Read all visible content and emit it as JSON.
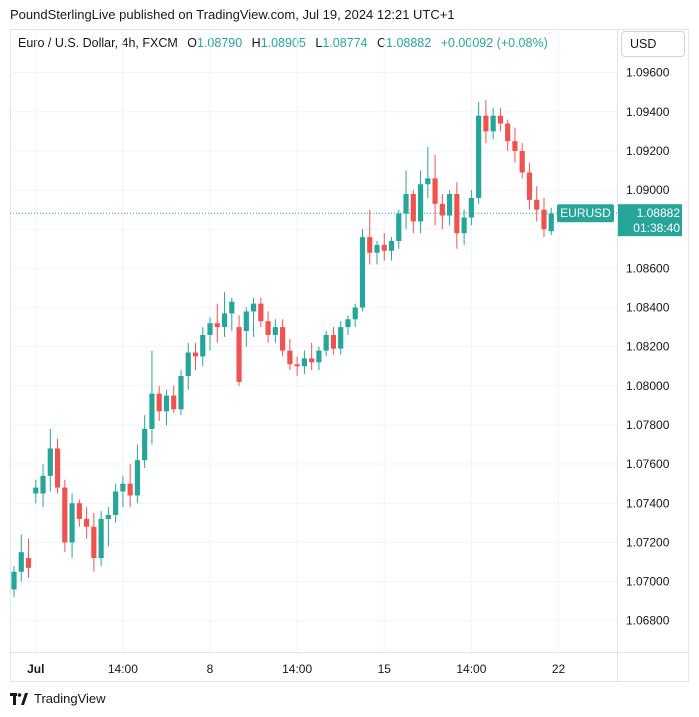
{
  "header": {
    "published_line": "PoundSterlingLive published on TradingView.com, Jul 19, 2024 12:21 UTC+1"
  },
  "legend": {
    "symbol": "Euro / U.S. Dollar, 4h, FXCM",
    "open_label": "O",
    "open_value": "1.08790",
    "high_label": "H",
    "high_value": "1.08905",
    "low_label": "L",
    "low_value": "1.08774",
    "close_label": "C",
    "close_value": "1.08882",
    "change": "+0.00092 (+0.08%)"
  },
  "currency_button": "USD",
  "price_tag": {
    "symbol": "EURUSD",
    "price": "1.08882",
    "countdown": "01:38:40"
  },
  "footer": {
    "brand": "TradingView"
  },
  "colors": {
    "up": "#26a69a",
    "down": "#ef5350",
    "grid": "#f0f3fa",
    "axis_text": "#131722"
  },
  "chart_data": {
    "type": "candlestick",
    "ylim": [
      1.0664,
      1.0968
    ],
    "yticks": [
      "1.09600",
      "1.09400",
      "1.09200",
      "1.09000",
      "1.08800",
      "1.08600",
      "1.08400",
      "1.08200",
      "1.08000",
      "1.07800",
      "1.07600",
      "1.07400",
      "1.07200",
      "1.07000",
      "1.06800"
    ],
    "xticks": [
      {
        "label": "Jul",
        "index": 3
      },
      {
        "label": "14:00",
        "index": 15
      },
      {
        "label": "8",
        "index": 27
      },
      {
        "label": "14:00",
        "index": 39
      },
      {
        "label": "15",
        "index": 51
      },
      {
        "label": "14:00",
        "index": 63
      },
      {
        "label": "22",
        "index": 75
      }
    ],
    "last_price": 1.08882,
    "candles": [
      [
        1.0696,
        1.0708,
        1.0692,
        1.0705
      ],
      [
        1.0705,
        1.0724,
        1.07,
        1.0715
      ],
      [
        1.0712,
        1.0722,
        1.0702,
        1.0707
      ],
      [
        1.0745,
        1.0752,
        1.074,
        1.0748
      ],
      [
        1.0745,
        1.076,
        1.0738,
        1.0754
      ],
      [
        1.0754,
        1.0778,
        1.0746,
        1.0768
      ],
      [
        1.0768,
        1.0773,
        1.0745,
        1.0748
      ],
      [
        1.0748,
        1.0752,
        1.0715,
        1.072
      ],
      [
        1.072,
        1.0745,
        1.0712,
        1.074
      ],
      [
        1.074,
        1.0742,
        1.0728,
        1.0732
      ],
      [
        1.0732,
        1.0738,
        1.0722,
        1.0728
      ],
      [
        1.0728,
        1.0735,
        1.0705,
        1.0712
      ],
      [
        1.0712,
        1.0736,
        1.0708,
        1.0732
      ],
      [
        1.0732,
        1.0738,
        1.0718,
        1.0734
      ],
      [
        1.0734,
        1.075,
        1.073,
        1.0746
      ],
      [
        1.0746,
        1.0754,
        1.0738,
        1.075
      ],
      [
        1.075,
        1.076,
        1.0738,
        1.0744
      ],
      [
        1.0744,
        1.077,
        1.074,
        1.0762
      ],
      [
        1.0762,
        1.0785,
        1.0758,
        1.0778
      ],
      [
        1.0778,
        1.0818,
        1.077,
        1.0796
      ],
      [
        1.0796,
        1.08,
        1.0782,
        1.0787
      ],
      [
        1.0787,
        1.0798,
        1.078,
        1.0795
      ],
      [
        1.0795,
        1.08,
        1.0786,
        1.0788
      ],
      [
        1.0788,
        1.0808,
        1.0785,
        1.0805
      ],
      [
        1.0805,
        1.0822,
        1.0798,
        1.0817
      ],
      [
        1.0817,
        1.0822,
        1.0808,
        1.0815
      ],
      [
        1.0815,
        1.083,
        1.081,
        1.0826
      ],
      [
        1.0826,
        1.0835,
        1.0818,
        1.0832
      ],
      [
        1.0832,
        1.0842,
        1.0822,
        1.083
      ],
      [
        1.083,
        1.0848,
        1.0825,
        1.0837
      ],
      [
        1.0837,
        1.0845,
        1.0828,
        1.0843
      ],
      [
        1.083,
        1.0836,
        1.08,
        1.0802
      ],
      [
        1.0828,
        1.084,
        1.082,
        1.0838
      ],
      [
        1.0838,
        1.0845,
        1.0825,
        1.0842
      ],
      [
        1.0842,
        1.0845,
        1.083,
        1.0833
      ],
      [
        1.0833,
        1.0838,
        1.0822,
        1.0826
      ],
      [
        1.0826,
        1.0834,
        1.0822,
        1.083
      ],
      [
        1.083,
        1.0834,
        1.0815,
        1.0818
      ],
      [
        1.0818,
        1.0824,
        1.0808,
        1.0811
      ],
      [
        1.0811,
        1.0815,
        1.0805,
        1.081
      ],
      [
        1.081,
        1.0818,
        1.0806,
        1.0814
      ],
      [
        1.0814,
        1.0822,
        1.0808,
        1.0812
      ],
      [
        1.0812,
        1.082,
        1.0808,
        1.0818
      ],
      [
        1.0818,
        1.0828,
        1.0815,
        1.0826
      ],
      [
        1.0826,
        1.083,
        1.0816,
        1.0819
      ],
      [
        1.0819,
        1.0833,
        1.0816,
        1.083
      ],
      [
        1.083,
        1.0836,
        1.0826,
        1.0834
      ],
      [
        1.0834,
        1.0842,
        1.083,
        1.084
      ],
      [
        1.084,
        1.088,
        1.0838,
        1.0876
      ],
      [
        1.0876,
        1.089,
        1.0862,
        1.0868
      ],
      [
        1.0868,
        1.0874,
        1.0862,
        1.0872
      ],
      [
        1.0872,
        1.0878,
        1.0864,
        1.0869
      ],
      [
        1.0869,
        1.0876,
        1.0864,
        1.0874
      ],
      [
        1.0874,
        1.089,
        1.087,
        1.0888
      ],
      [
        1.0888,
        1.091,
        1.088,
        1.0898
      ],
      [
        1.0898,
        1.09,
        1.0878,
        1.0884
      ],
      [
        1.0884,
        1.091,
        1.0878,
        1.0903
      ],
      [
        1.0903,
        1.0922,
        1.0896,
        1.0906
      ],
      [
        1.0906,
        1.0918,
        1.0882,
        1.0893
      ],
      [
        1.0893,
        1.0898,
        1.088,
        1.0887
      ],
      [
        1.0887,
        1.09,
        1.0882,
        1.0898
      ],
      [
        1.0898,
        1.0904,
        1.087,
        1.0878
      ],
      [
        1.0878,
        1.089,
        1.0872,
        1.0886
      ],
      [
        1.0886,
        1.09,
        1.0882,
        1.0896
      ],
      [
        1.0896,
        1.0945,
        1.0893,
        1.0938
      ],
      [
        1.0938,
        1.0946,
        1.0924,
        1.093
      ],
      [
        1.093,
        1.0942,
        1.0926,
        1.0938
      ],
      [
        1.0938,
        1.0942,
        1.093,
        1.0934
      ],
      [
        1.0934,
        1.0936,
        1.092,
        1.0925
      ],
      [
        1.0925,
        1.0932,
        1.0914,
        1.092
      ],
      [
        1.092,
        1.0924,
        1.0906,
        1.0909
      ],
      [
        1.0909,
        1.0914,
        1.089,
        1.0895
      ],
      [
        1.0895,
        1.0902,
        1.0884,
        1.089
      ],
      [
        1.089,
        1.0896,
        1.0876,
        1.088
      ],
      [
        1.0879,
        1.0891,
        1.0877,
        1.0888
      ]
    ]
  }
}
